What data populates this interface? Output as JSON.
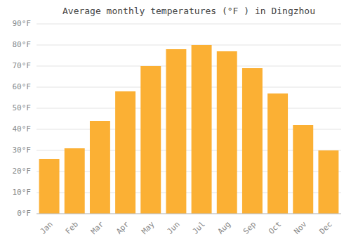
{
  "chart_data": {
    "type": "bar",
    "title": "Average monthly temperatures (°F ) in Dingzhou",
    "categories": [
      "Jan",
      "Feb",
      "Mar",
      "Apr",
      "May",
      "Jun",
      "Jul",
      "Aug",
      "Sep",
      "Oct",
      "Nov",
      "Dec"
    ],
    "values": [
      26,
      31,
      44,
      58,
      70,
      78,
      80,
      77,
      69,
      57,
      42,
      30
    ],
    "color": "#FBB034",
    "ylim": [
      0,
      90
    ],
    "yticks": [
      {
        "value": 0,
        "label": "0°F"
      },
      {
        "value": 10,
        "label": "10°F"
      },
      {
        "value": 20,
        "label": "20°F"
      },
      {
        "value": 30,
        "label": "30°F"
      },
      {
        "value": 40,
        "label": "40°F"
      },
      {
        "value": 50,
        "label": "50°F"
      },
      {
        "value": 60,
        "label": "60°F"
      },
      {
        "value": 70,
        "label": "70°F"
      },
      {
        "value": 80,
        "label": "80°F"
      },
      {
        "value": 90,
        "label": "90°F"
      }
    ],
    "grid": true
  }
}
